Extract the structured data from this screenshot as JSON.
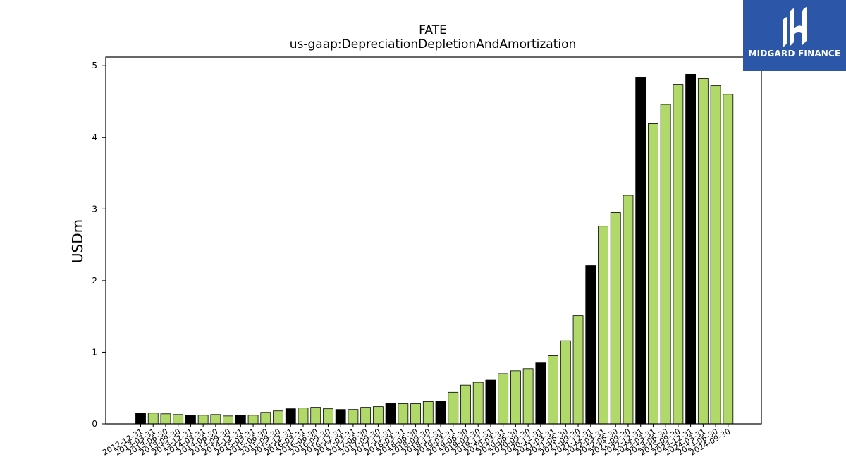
{
  "logo": {
    "text": "MIDGARD FINANCE",
    "icon": "midgard-m-logo-icon",
    "background": "#2c57a8"
  },
  "chart_data": {
    "type": "bar",
    "title": "FATE",
    "subtitle": "us-gaap:DepreciationDepletionAndAmortization",
    "ylabel": "USDm",
    "xlabel": "",
    "ylim": [
      0,
      5.12
    ],
    "yticks": [
      0,
      1,
      2,
      3,
      4,
      5
    ],
    "colors": {
      "q4": "#000000",
      "other": "#b0d96a",
      "edge": "#000000"
    },
    "categories": [
      "2012-12-31",
      "2013-03-31",
      "2013-06-30",
      "2013-09-30",
      "2013-12-31",
      "2014-03-31",
      "2014-06-30",
      "2014-09-30",
      "2014-12-31",
      "2015-03-31",
      "2015-06-30",
      "2015-09-30",
      "2015-12-31",
      "2016-03-31",
      "2016-06-30",
      "2016-09-30",
      "2016-12-31",
      "2017-03-31",
      "2017-06-30",
      "2017-09-30",
      "2017-12-31",
      "2018-03-31",
      "2018-06-30",
      "2018-09-30",
      "2018-12-31",
      "2019-03-31",
      "2019-06-30",
      "2019-09-30",
      "2019-12-31",
      "2020-03-31",
      "2020-06-30",
      "2020-09-30",
      "2020-12-31",
      "2021-03-31",
      "2021-06-30",
      "2021-09-30",
      "2021-12-31",
      "2022-03-31",
      "2022-06-30",
      "2022-09-30",
      "2022-12-31",
      "2023-03-31",
      "2023-06-30",
      "2023-09-30",
      "2023-12-31",
      "2024-03-31",
      "2024-06-30",
      "2024-09-30"
    ],
    "values": [
      0.15,
      0.15,
      0.14,
      0.13,
      0.12,
      0.12,
      0.13,
      0.11,
      0.12,
      0.12,
      0.16,
      0.18,
      0.21,
      0.22,
      0.23,
      0.21,
      0.2,
      0.2,
      0.23,
      0.24,
      0.29,
      0.28,
      0.28,
      0.31,
      0.32,
      0.44,
      0.54,
      0.58,
      0.61,
      0.7,
      0.74,
      0.77,
      0.85,
      0.95,
      1.16,
      1.51,
      2.21,
      2.76,
      2.95,
      3.19,
      4.84,
      4.19,
      4.46,
      4.74,
      4.88,
      4.82,
      4.72,
      4.6
    ]
  }
}
